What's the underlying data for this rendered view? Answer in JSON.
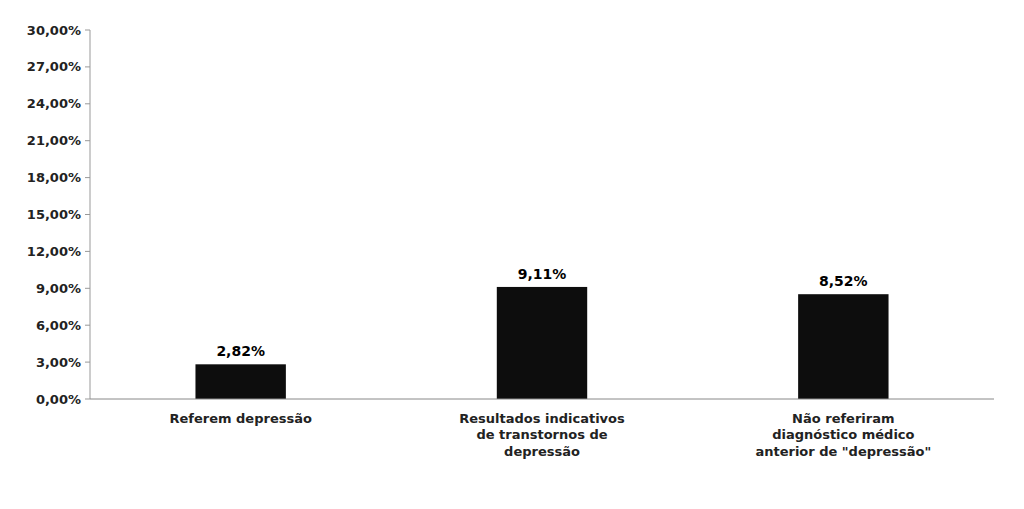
{
  "chart_data": {
    "type": "bar",
    "categories": [
      "Referem depressão",
      "Resultados indicativos\nde transtornos de\ndepressão",
      "Não referiram\ndiagnóstico médico\nanterior de \"depressão\""
    ],
    "values": [
      2.82,
      9.11,
      8.52
    ],
    "value_labels": [
      "2,82%",
      "9,11%",
      "8,52%"
    ],
    "data_labels": true,
    "color": "#0d0d0d",
    "ylim": [
      0,
      30
    ],
    "yticks": [
      {
        "value": 0,
        "label": "0,00%"
      },
      {
        "value": 3,
        "label": "3,00%"
      },
      {
        "value": 6,
        "label": "6,00%"
      },
      {
        "value": 9,
        "label": "9,00%"
      },
      {
        "value": 12,
        "label": "12,00%"
      },
      {
        "value": 15,
        "label": "15,00%"
      },
      {
        "value": 18,
        "label": "18,00%"
      },
      {
        "value": 21,
        "label": "21,00%"
      },
      {
        "value": 24,
        "label": "24,00%"
      },
      {
        "value": 27,
        "label": "27,00%"
      },
      {
        "value": 30,
        "label": "30,00%"
      }
    ],
    "grid": false
  }
}
